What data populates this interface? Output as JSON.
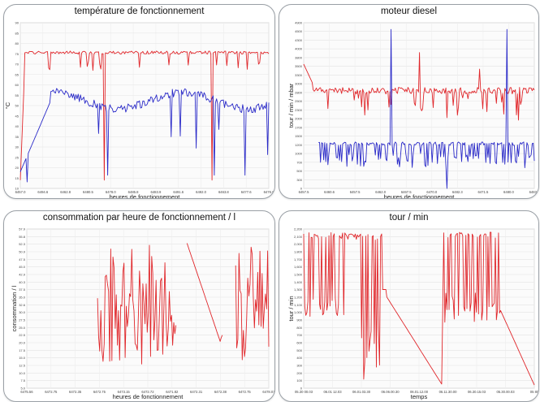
{
  "charts": [
    {
      "title": "température de fonctionnement",
      "ylabel": "°C",
      "xlabel": "heures de fonctionnement",
      "ytick_labels": [
        "90",
        "85",
        "80",
        "75",
        "70",
        "65",
        "60",
        "55",
        "50",
        "45",
        "40",
        "35",
        "30",
        "25",
        "20",
        "15",
        "10"
      ],
      "xtick_labels": [
        "6457.0",
        "6494.6",
        "6462.8",
        "6480.5",
        "6478.0",
        "6485.8",
        "6483.9",
        "6491.6",
        "6492.0",
        "6463.8",
        "6477.6",
        "6476.6"
      ],
      "series": [
        {
          "color": "#e0262a",
          "shape": "hi",
          "base": 0.82,
          "noise": 0.018
        },
        {
          "color": "#2a2ac8",
          "shape": "mid",
          "base": 0.53,
          "noise": 0.05
        }
      ]
    },
    {
      "title": "moteur diesel",
      "ylabel": "tour / min / mbar",
      "xlabel": "heures de fonctionnement",
      "ytick_labels": [
        "4900",
        "4500",
        "4300",
        "4000",
        "3800",
        "3500",
        "3300",
        "3000",
        "2800",
        "2500",
        "2300",
        "2000",
        "1700",
        "1500",
        "1200",
        "1000",
        "700",
        "500",
        "300",
        "0"
      ],
      "xtick_labels": [
        "6457.5",
        "6460.6",
        "6457.5",
        "6462.0",
        "6467.5",
        "6470.0",
        "6482.3",
        "6471.5",
        "6480.0",
        "6483.5"
      ],
      "series": [
        {
          "color": "#e0262a",
          "shape": "rpm",
          "base": 0.59,
          "noise": 0.04
        },
        {
          "color": "#2a2ac8",
          "shape": "press",
          "base": 0.27,
          "noise": 0.02
        }
      ]
    },
    {
      "title": "consommation par heure de fonctionnement / l",
      "ylabel": "consommation / l",
      "xlabel": "heures de fonctionnement",
      "ytick_labels": [
        "57.9",
        "55.8",
        "52.3",
        "50.9",
        "47.5",
        "45.0",
        "42.9",
        "40.3",
        "37.5",
        "35.0",
        "32.6",
        "30.0",
        "27.5",
        "25.0",
        "22.5",
        "20.0",
        "17.5",
        "15.0",
        "12.5",
        "10.0",
        "7.5",
        "5.0"
      ],
      "xtick_labels": [
        "6475.56",
        "6472.75",
        "6472.35",
        "6472.75",
        "6473.15",
        "6472.72",
        "6471.82",
        "6472.31",
        "6472.38",
        "6472.75",
        "6478.01"
      ],
      "series": [
        {
          "color": "#e0262a",
          "shape": "cons",
          "base": 0.5,
          "noise": 0.3
        }
      ]
    },
    {
      "title": "tour / min",
      "ylabel": "tour / min",
      "xlabel": "temps",
      "ytick_labels": [
        "2,200",
        "2,100",
        "2,000",
        "1,800",
        "1,700",
        "1,600",
        "1,500",
        "1,400",
        "1,300",
        "1,200",
        "1,100",
        "1,000",
        "900",
        "800",
        "700",
        "600",
        "500",
        "400",
        "300",
        "200",
        "100",
        "0"
      ],
      "xtick_labels": [
        "05.30 00.03",
        "06.01 12.03",
        "06.01.03.30",
        "06.06.00.30",
        "06.01.12.00",
        "06.11.30.00",
        "06.30.15.03",
        "05.30.00.03",
        "05 80"
      ],
      "series": [
        {
          "color": "#e0262a",
          "shape": "tour",
          "base": 0.5,
          "noise": 0.3
        }
      ]
    }
  ]
}
